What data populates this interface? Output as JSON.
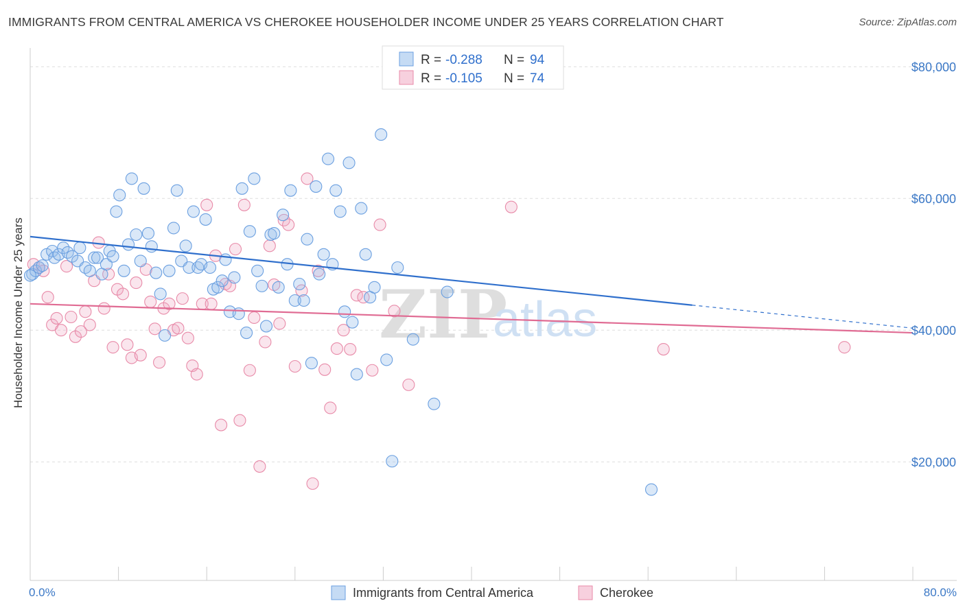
{
  "title": "IMMIGRANTS FROM CENTRAL AMERICA VS CHEROKEE HOUSEHOLDER INCOME UNDER 25 YEARS CORRELATION CHART",
  "source": "Source: ZipAtlas.com",
  "colors": {
    "blue": "#6a9fe0",
    "blue_fill": "rgba(150,190,235,0.35)",
    "blue_line": "#2f6fcc",
    "pink": "#e88aa8",
    "pink_fill": "rgba(240,170,195,0.30)",
    "pink_line": "#e06b93",
    "tick_text": "#3b78c6",
    "grid": "#dddddd"
  },
  "legend": {
    "rows": [
      {
        "r_label": "R =",
        "r_value": "-0.288",
        "n_label": "N =",
        "n_value": "94"
      },
      {
        "r_label": "R =",
        "r_value": "-0.105",
        "n_label": "N =",
        "n_value": "74"
      }
    ]
  },
  "watermark": {
    "zip": "ZIP",
    "atlas": "atlas"
  },
  "chart_data": {
    "type": "scatter",
    "title": "IMMIGRANTS FROM CENTRAL AMERICA VS CHEROKEE HOUSEHOLDER INCOME UNDER 25 YEARS CORRELATION CHART",
    "xlabel": "",
    "ylabel": "Householder Income Under 25 years",
    "xlim": [
      0,
      80
    ],
    "ylim": [
      2000,
      82000
    ],
    "x_tick_labels": [
      "0.0%",
      "80.0%"
    ],
    "y_ticks": [
      20000,
      40000,
      60000,
      80000
    ],
    "y_tick_labels": [
      "$20,000",
      "$40,000",
      "$60,000",
      "$80,000"
    ],
    "series": [
      {
        "name": "Immigrants from Central America",
        "color": "blue",
        "trend": {
          "x0": 0,
          "y0": 54200,
          "x1": 60,
          "y1": 43800,
          "dash_to_x": 80,
          "dash_to_y": 40300
        },
        "points": [
          [
            0.2,
            48500
          ],
          [
            0.5,
            49000
          ],
          [
            0.8,
            49500
          ],
          [
            1.1,
            49800
          ],
          [
            1.5,
            51500
          ],
          [
            2.0,
            52000
          ],
          [
            2.2,
            51000
          ],
          [
            2.6,
            51500
          ],
          [
            3.0,
            52500
          ],
          [
            3.4,
            51800
          ],
          [
            3.8,
            51200
          ],
          [
            4.3,
            50500
          ],
          [
            4.5,
            52500
          ],
          [
            5.0,
            49500
          ],
          [
            5.4,
            49000
          ],
          [
            5.8,
            51000
          ],
          [
            6.1,
            51000
          ],
          [
            6.5,
            48500
          ],
          [
            6.9,
            50000
          ],
          [
            7.2,
            52000
          ],
          [
            7.5,
            51200
          ],
          [
            7.8,
            58000
          ],
          [
            8.1,
            60500
          ],
          [
            8.5,
            49000
          ],
          [
            8.9,
            53000
          ],
          [
            9.2,
            63000
          ],
          [
            9.6,
            54500
          ],
          [
            10.0,
            50500
          ],
          [
            10.3,
            61500
          ],
          [
            10.7,
            54700
          ],
          [
            11.0,
            52700
          ],
          [
            11.4,
            48700
          ],
          [
            11.8,
            45500
          ],
          [
            12.2,
            39200
          ],
          [
            12.6,
            49000
          ],
          [
            13.0,
            55500
          ],
          [
            13.3,
            61200
          ],
          [
            13.7,
            50500
          ],
          [
            14.1,
            52800
          ],
          [
            14.4,
            49500
          ],
          [
            14.8,
            58000
          ],
          [
            15.2,
            49500
          ],
          [
            15.5,
            50000
          ],
          [
            15.9,
            56800
          ],
          [
            16.3,
            49500
          ],
          [
            16.6,
            46200
          ],
          [
            17.0,
            46500
          ],
          [
            17.4,
            47500
          ],
          [
            17.7,
            50700
          ],
          [
            18.1,
            42800
          ],
          [
            18.5,
            48000
          ],
          [
            18.9,
            42500
          ],
          [
            19.2,
            61500
          ],
          [
            19.6,
            39600
          ],
          [
            19.9,
            55000
          ],
          [
            20.3,
            63000
          ],
          [
            20.6,
            49000
          ],
          [
            21.0,
            46700
          ],
          [
            21.4,
            40600
          ],
          [
            21.8,
            54500
          ],
          [
            22.1,
            54700
          ],
          [
            22.5,
            46500
          ],
          [
            22.9,
            57500
          ],
          [
            23.3,
            50000
          ],
          [
            23.6,
            61200
          ],
          [
            24.0,
            44500
          ],
          [
            24.4,
            47000
          ],
          [
            24.8,
            44500
          ],
          [
            25.1,
            53800
          ],
          [
            25.5,
            35000
          ],
          [
            25.9,
            61800
          ],
          [
            26.2,
            48500
          ],
          [
            26.6,
            51500
          ],
          [
            27.0,
            66000
          ],
          [
            27.4,
            50000
          ],
          [
            27.7,
            61200
          ],
          [
            28.1,
            58000
          ],
          [
            28.5,
            42800
          ],
          [
            28.9,
            65400
          ],
          [
            29.2,
            41200
          ],
          [
            29.6,
            33300
          ],
          [
            30.0,
            58500
          ],
          [
            30.4,
            51500
          ],
          [
            30.8,
            45000
          ],
          [
            31.2,
            46500
          ],
          [
            31.8,
            69700
          ],
          [
            32.3,
            35500
          ],
          [
            32.8,
            20100
          ],
          [
            33.3,
            49500
          ],
          [
            34.7,
            38600
          ],
          [
            36.6,
            28800
          ],
          [
            37.8,
            45800
          ],
          [
            56.3,
            15800
          ],
          [
            0.0,
            48300
          ]
        ]
      },
      {
        "name": "Cherokee",
        "color": "pink",
        "trend": {
          "x0": 0,
          "y0": 44000,
          "x1": 80,
          "y1": 39600
        },
        "points": [
          [
            0.3,
            50000
          ],
          [
            0.8,
            49500
          ],
          [
            1.2,
            49000
          ],
          [
            1.6,
            45000
          ],
          [
            2.0,
            40800
          ],
          [
            2.4,
            41800
          ],
          [
            2.8,
            40000
          ],
          [
            3.3,
            49700
          ],
          [
            3.7,
            42000
          ],
          [
            4.1,
            39000
          ],
          [
            4.6,
            39800
          ],
          [
            5.0,
            42800
          ],
          [
            5.4,
            40800
          ],
          [
            5.8,
            47500
          ],
          [
            6.2,
            53300
          ],
          [
            6.7,
            43300
          ],
          [
            7.1,
            48500
          ],
          [
            7.5,
            37400
          ],
          [
            7.9,
            46200
          ],
          [
            8.4,
            45500
          ],
          [
            8.8,
            37800
          ],
          [
            9.2,
            35800
          ],
          [
            9.6,
            47200
          ],
          [
            10.0,
            36200
          ],
          [
            10.5,
            49200
          ],
          [
            10.9,
            44300
          ],
          [
            11.3,
            40200
          ],
          [
            11.7,
            35100
          ],
          [
            12.1,
            43300
          ],
          [
            12.6,
            44000
          ],
          [
            13.0,
            40000
          ],
          [
            13.4,
            40300
          ],
          [
            13.8,
            44800
          ],
          [
            14.3,
            38800
          ],
          [
            14.7,
            34600
          ],
          [
            15.1,
            33300
          ],
          [
            15.6,
            44000
          ],
          [
            16.0,
            59000
          ],
          [
            16.4,
            44000
          ],
          [
            16.8,
            51300
          ],
          [
            17.3,
            25600
          ],
          [
            17.7,
            47000
          ],
          [
            18.1,
            46700
          ],
          [
            18.6,
            52300
          ],
          [
            19.0,
            26300
          ],
          [
            19.4,
            59000
          ],
          [
            19.9,
            33900
          ],
          [
            20.3,
            41900
          ],
          [
            20.8,
            19300
          ],
          [
            21.3,
            38200
          ],
          [
            21.7,
            52800
          ],
          [
            22.1,
            46900
          ],
          [
            22.6,
            41000
          ],
          [
            23.0,
            56700
          ],
          [
            23.4,
            56000
          ],
          [
            24.0,
            34500
          ],
          [
            24.6,
            46000
          ],
          [
            25.1,
            63000
          ],
          [
            25.6,
            16700
          ],
          [
            26.1,
            49000
          ],
          [
            26.7,
            34000
          ],
          [
            27.2,
            28200
          ],
          [
            27.8,
            37200
          ],
          [
            28.4,
            40000
          ],
          [
            29.0,
            37100
          ],
          [
            29.6,
            45300
          ],
          [
            30.2,
            45000
          ],
          [
            31.0,
            33900
          ],
          [
            31.7,
            56000
          ],
          [
            33.0,
            42900
          ],
          [
            34.3,
            31700
          ],
          [
            43.6,
            58700
          ],
          [
            57.4,
            37100
          ],
          [
            73.8,
            37400
          ]
        ]
      }
    ]
  },
  "bottom_legend": {
    "items": [
      "Immigrants from Central America",
      "Cherokee"
    ]
  }
}
